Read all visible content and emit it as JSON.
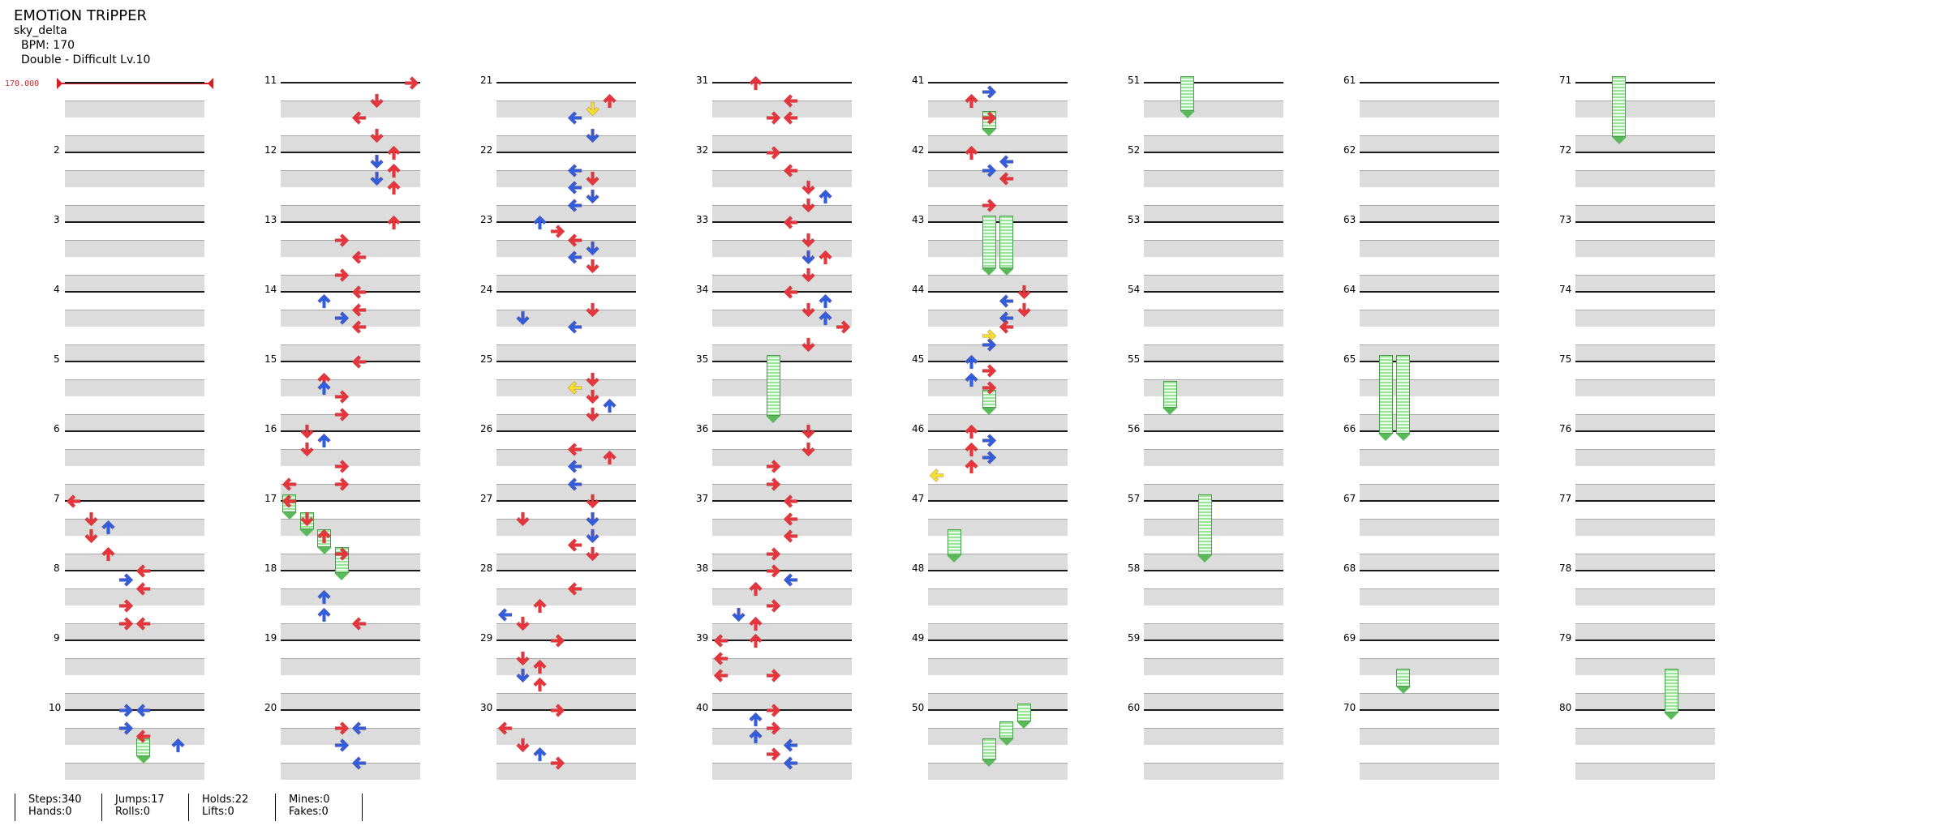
{
  "song": {
    "title": "EMOTiON TRiPPER",
    "author": "sky_delta",
    "bpm_line": "BPM: 170",
    "difficulty_line": "Double - Difficult Lv.10"
  },
  "bpm_marker": {
    "label": "170.000"
  },
  "measure_numbers": [
    "2",
    "3",
    "4",
    "5",
    "6",
    "7",
    "8",
    "9",
    "10",
    "11",
    "12",
    "13",
    "14",
    "15",
    "16",
    "17",
    "18",
    "19",
    "20",
    "21",
    "22",
    "23",
    "24",
    "25",
    "26",
    "27",
    "28",
    "29",
    "30",
    "31",
    "32",
    "33",
    "34",
    "35",
    "36",
    "37",
    "38",
    "39",
    "40",
    "41",
    "42",
    "43",
    "44",
    "45",
    "46",
    "47",
    "48",
    "49",
    "50",
    "51",
    "52",
    "53",
    "54",
    "55",
    "56",
    "57",
    "58",
    "59",
    "60",
    "61",
    "62",
    "63",
    "64",
    "65",
    "66",
    "67",
    "68",
    "69",
    "70",
    "71",
    "72",
    "73",
    "74",
    "75",
    "76",
    "77",
    "78",
    "79",
    "80"
  ],
  "stats": {
    "steps": "Steps:340",
    "hands": "Hands:0",
    "jumps": "Jumps:17",
    "rolls": "Rolls:0",
    "holds": "Holds:22",
    "lifts": "Lifts:0",
    "mines": "Mines:0",
    "fakes": "Fakes:0"
  },
  "colors": {
    "red": "#e8343a",
    "blue": "#2f5fe0",
    "yellow": "#f4e02c",
    "hold": "#9be39b"
  },
  "chart_data": {
    "type": "table",
    "columns": 8,
    "measures_per_column": 10,
    "lanes": [
      "L1",
      "D1",
      "U1",
      "R1",
      "L2",
      "D2",
      "U2",
      "R2"
    ],
    "notes": [
      {
        "m": 7,
        "b": 0,
        "l": 0,
        "c": "red"
      },
      {
        "m": 7,
        "b": 1,
        "l": 1,
        "c": "red"
      },
      {
        "m": 7,
        "b": 1.5,
        "l": 2,
        "c": "blue"
      },
      {
        "m": 7,
        "b": 2,
        "l": 1,
        "c": "red"
      },
      {
        "m": 7,
        "b": 3,
        "l": 2,
        "c": "red"
      },
      {
        "m": 8,
        "b": 0,
        "l": 4,
        "c": "red"
      },
      {
        "m": 8,
        "b": 0.5,
        "l": 3,
        "c": "blue"
      },
      {
        "m": 8,
        "b": 1,
        "l": 4,
        "c": "red"
      },
      {
        "m": 8,
        "b": 2,
        "l": 3,
        "c": "red"
      },
      {
        "m": 8,
        "b": 3,
        "l": 3,
        "c": "red"
      },
      {
        "m": 8,
        "b": 3,
        "l": 4,
        "c": "red"
      },
      {
        "m": 10,
        "b": 0,
        "l": 3,
        "c": "blue"
      },
      {
        "m": 10,
        "b": 0,
        "l": 4,
        "c": "blue"
      },
      {
        "m": 10,
        "b": 1,
        "l": 3,
        "c": "blue"
      },
      {
        "m": 10,
        "b": 1.5,
        "l": 4,
        "c": "red"
      },
      {
        "m": 10,
        "b": 2,
        "l": 6,
        "c": "blue"
      },
      {
        "m": 11,
        "b": 0,
        "l": 7,
        "c": "red"
      },
      {
        "m": 11,
        "b": 1,
        "l": 5,
        "c": "red"
      },
      {
        "m": 11,
        "b": 2,
        "l": 4,
        "c": "red"
      },
      {
        "m": 11,
        "b": 3,
        "l": 5,
        "c": "red"
      },
      {
        "m": 12,
        "b": 0,
        "l": 6,
        "c": "red"
      },
      {
        "m": 12,
        "b": 0.5,
        "l": 5,
        "c": "blue"
      },
      {
        "m": 12,
        "b": 1,
        "l": 6,
        "c": "red"
      },
      {
        "m": 12,
        "b": 1.5,
        "l": 5,
        "c": "blue"
      },
      {
        "m": 12,
        "b": 2,
        "l": 6,
        "c": "red"
      },
      {
        "m": 13,
        "b": 0,
        "l": 6,
        "c": "red"
      },
      {
        "m": 13,
        "b": 1,
        "l": 3,
        "c": "red"
      },
      {
        "m": 13,
        "b": 2,
        "l": 4,
        "c": "red"
      },
      {
        "m": 13,
        "b": 3,
        "l": 3,
        "c": "red"
      },
      {
        "m": 14,
        "b": 0,
        "l": 4,
        "c": "red"
      },
      {
        "m": 14,
        "b": 0.5,
        "l": 2,
        "c": "blue"
      },
      {
        "m": 14,
        "b": 1,
        "l": 4,
        "c": "red"
      },
      {
        "m": 14,
        "b": 1.5,
        "l": 3,
        "c": "blue"
      },
      {
        "m": 14,
        "b": 2,
        "l": 4,
        "c": "red"
      },
      {
        "m": 15,
        "b": 0,
        "l": 4,
        "c": "red"
      },
      {
        "m": 15,
        "b": 1,
        "l": 2,
        "c": "red"
      },
      {
        "m": 15,
        "b": 1.5,
        "l": 2,
        "c": "blue"
      },
      {
        "m": 15,
        "b": 2,
        "l": 3,
        "c": "red"
      },
      {
        "m": 15,
        "b": 3,
        "l": 3,
        "c": "red"
      },
      {
        "m": 16,
        "b": 0,
        "l": 1,
        "c": "red"
      },
      {
        "m": 16,
        "b": 0.5,
        "l": 2,
        "c": "blue"
      },
      {
        "m": 16,
        "b": 1,
        "l": 1,
        "c": "red"
      },
      {
        "m": 16,
        "b": 2,
        "l": 3,
        "c": "red"
      },
      {
        "m": 16,
        "b": 3,
        "l": 0,
        "c": "red"
      },
      {
        "m": 16,
        "b": 3,
        "l": 3,
        "c": "red"
      },
      {
        "m": 17,
        "b": 0,
        "l": 0,
        "c": "red"
      },
      {
        "m": 17,
        "b": 1,
        "l": 1,
        "c": "red"
      },
      {
        "m": 17,
        "b": 2,
        "l": 2,
        "c": "red"
      },
      {
        "m": 17,
        "b": 3,
        "l": 3,
        "c": "red"
      },
      {
        "m": 18,
        "b": 1.5,
        "l": 2,
        "c": "blue"
      },
      {
        "m": 18,
        "b": 2.5,
        "l": 2,
        "c": "blue"
      },
      {
        "m": 18,
        "b": 3,
        "l": 4,
        "c": "red"
      },
      {
        "m": 20,
        "b": 1,
        "l": 3,
        "c": "red"
      },
      {
        "m": 20,
        "b": 1,
        "l": 4,
        "c": "blue"
      },
      {
        "m": 20,
        "b": 2,
        "l": 3,
        "c": "blue"
      },
      {
        "m": 20,
        "b": 3,
        "l": 4,
        "c": "blue"
      },
      {
        "m": 21,
        "b": 1,
        "l": 6,
        "c": "red"
      },
      {
        "m": 21,
        "b": 1.5,
        "l": 5,
        "c": "yellow"
      },
      {
        "m": 21,
        "b": 2,
        "l": 4,
        "c": "blue"
      },
      {
        "m": 21,
        "b": 3,
        "l": 5,
        "c": "blue"
      },
      {
        "m": 22,
        "b": 1,
        "l": 4,
        "c": "blue"
      },
      {
        "m": 22,
        "b": 1.5,
        "l": 5,
        "c": "red"
      },
      {
        "m": 22,
        "b": 2,
        "l": 4,
        "c": "blue"
      },
      {
        "m": 22,
        "b": 2.5,
        "l": 5,
        "c": "blue"
      },
      {
        "m": 22,
        "b": 3,
        "l": 4,
        "c": "blue"
      },
      {
        "m": 23,
        "b": 0,
        "l": 2,
        "c": "blue"
      },
      {
        "m": 23,
        "b": 0.5,
        "l": 3,
        "c": "red"
      },
      {
        "m": 23,
        "b": 1,
        "l": 4,
        "c": "red"
      },
      {
        "m": 23,
        "b": 1.5,
        "l": 5,
        "c": "blue"
      },
      {
        "m": 23,
        "b": 2,
        "l": 4,
        "c": "blue"
      },
      {
        "m": 23,
        "b": 2.5,
        "l": 5,
        "c": "red"
      },
      {
        "m": 24,
        "b": 1,
        "l": 5,
        "c": "red"
      },
      {
        "m": 24,
        "b": 1.5,
        "l": 1,
        "c": "blue"
      },
      {
        "m": 24,
        "b": 2,
        "l": 4,
        "c": "blue"
      },
      {
        "m": 25,
        "b": 1,
        "l": 5,
        "c": "red"
      },
      {
        "m": 25,
        "b": 1.5,
        "l": 4,
        "c": "yellow"
      },
      {
        "m": 25,
        "b": 2,
        "l": 5,
        "c": "red"
      },
      {
        "m": 25,
        "b": 2.5,
        "l": 6,
        "c": "blue"
      },
      {
        "m": 25,
        "b": 3,
        "l": 5,
        "c": "red"
      },
      {
        "m": 26,
        "b": 1,
        "l": 4,
        "c": "red"
      },
      {
        "m": 26,
        "b": 1.5,
        "l": 6,
        "c": "red"
      },
      {
        "m": 26,
        "b": 2,
        "l": 4,
        "c": "blue"
      },
      {
        "m": 26,
        "b": 3,
        "l": 4,
        "c": "blue"
      },
      {
        "m": 27,
        "b": 0,
        "l": 5,
        "c": "red"
      },
      {
        "m": 27,
        "b": 1,
        "l": 1,
        "c": "red"
      },
      {
        "m": 27,
        "b": 1,
        "l": 5,
        "c": "blue"
      },
      {
        "m": 27,
        "b": 2,
        "l": 5,
        "c": "blue"
      },
      {
        "m": 27,
        "b": 2.5,
        "l": 4,
        "c": "red"
      },
      {
        "m": 27,
        "b": 3,
        "l": 5,
        "c": "red"
      },
      {
        "m": 28,
        "b": 1,
        "l": 4,
        "c": "red"
      },
      {
        "m": 28,
        "b": 2,
        "l": 2,
        "c": "red"
      },
      {
        "m": 28,
        "b": 2.5,
        "l": 0,
        "c": "blue"
      },
      {
        "m": 28,
        "b": 3,
        "l": 1,
        "c": "red"
      },
      {
        "m": 29,
        "b": 0,
        "l": 3,
        "c": "red"
      },
      {
        "m": 29,
        "b": 1,
        "l": 1,
        "c": "red"
      },
      {
        "m": 29,
        "b": 1.5,
        "l": 2,
        "c": "red"
      },
      {
        "m": 29,
        "b": 2,
        "l": 1,
        "c": "blue"
      },
      {
        "m": 29,
        "b": 2.5,
        "l": 2,
        "c": "red"
      },
      {
        "m": 30,
        "b": 0,
        "l": 3,
        "c": "red"
      },
      {
        "m": 30,
        "b": 1,
        "l": 0,
        "c": "red"
      },
      {
        "m": 30,
        "b": 2,
        "l": 1,
        "c": "red"
      },
      {
        "m": 30,
        "b": 2.5,
        "l": 2,
        "c": "blue"
      },
      {
        "m": 30,
        "b": 3,
        "l": 3,
        "c": "red"
      },
      {
        "m": 31,
        "b": 0,
        "l": 2,
        "c": "red"
      },
      {
        "m": 31,
        "b": 1,
        "l": 4,
        "c": "red"
      },
      {
        "m": 31,
        "b": 2,
        "l": 3,
        "c": "red"
      },
      {
        "m": 31,
        "b": 2,
        "l": 4,
        "c": "red"
      },
      {
        "m": 32,
        "b": 0,
        "l": 3,
        "c": "red"
      },
      {
        "m": 32,
        "b": 1,
        "l": 4,
        "c": "red"
      },
      {
        "m": 32,
        "b": 2,
        "l": 5,
        "c": "red"
      },
      {
        "m": 32,
        "b": 2.5,
        "l": 6,
        "c": "blue"
      },
      {
        "m": 32,
        "b": 3,
        "l": 5,
        "c": "red"
      },
      {
        "m": 33,
        "b": 0,
        "l": 4,
        "c": "red"
      },
      {
        "m": 33,
        "b": 1,
        "l": 5,
        "c": "red"
      },
      {
        "m": 33,
        "b": 2,
        "l": 5,
        "c": "blue"
      },
      {
        "m": 33,
        "b": 2,
        "l": 6,
        "c": "red"
      },
      {
        "m": 33,
        "b": 3,
        "l": 5,
        "c": "red"
      },
      {
        "m": 34,
        "b": 0,
        "l": 4,
        "c": "red"
      },
      {
        "m": 34,
        "b": 0.5,
        "l": 6,
        "c": "blue"
      },
      {
        "m": 34,
        "b": 1,
        "l": 5,
        "c": "red"
      },
      {
        "m": 34,
        "b": 1.5,
        "l": 6,
        "c": "blue"
      },
      {
        "m": 34,
        "b": 2,
        "l": 7,
        "c": "red"
      },
      {
        "m": 34,
        "b": 3,
        "l": 5,
        "c": "red"
      },
      {
        "m": 36,
        "b": 0,
        "l": 5,
        "c": "red"
      },
      {
        "m": 36,
        "b": 1,
        "l": 5,
        "c": "red"
      },
      {
        "m": 36,
        "b": 2,
        "l": 3,
        "c": "red"
      },
      {
        "m": 36,
        "b": 3,
        "l": 3,
        "c": "red"
      },
      {
        "m": 37,
        "b": 0,
        "l": 4,
        "c": "red"
      },
      {
        "m": 37,
        "b": 1,
        "l": 4,
        "c": "red"
      },
      {
        "m": 37,
        "b": 2,
        "l": 4,
        "c": "red"
      },
      {
        "m": 37,
        "b": 3,
        "l": 3,
        "c": "red"
      },
      {
        "m": 38,
        "b": 0,
        "l": 3,
        "c": "red"
      },
      {
        "m": 38,
        "b": 0.5,
        "l": 4,
        "c": "blue"
      },
      {
        "m": 38,
        "b": 1,
        "l": 2,
        "c": "red"
      },
      {
        "m": 38,
        "b": 2,
        "l": 3,
        "c": "red"
      },
      {
        "m": 38,
        "b": 2.5,
        "l": 1,
        "c": "blue"
      },
      {
        "m": 38,
        "b": 3,
        "l": 2,
        "c": "red"
      },
      {
        "m": 39,
        "b": 0,
        "l": 0,
        "c": "red"
      },
      {
        "m": 39,
        "b": 0,
        "l": 2,
        "c": "red"
      },
      {
        "m": 39,
        "b": 1,
        "l": 0,
        "c": "red"
      },
      {
        "m": 39,
        "b": 2,
        "l": 0,
        "c": "red"
      },
      {
        "m": 39,
        "b": 2,
        "l": 3,
        "c": "red"
      },
      {
        "m": 40,
        "b": 0,
        "l": 3,
        "c": "red"
      },
      {
        "m": 40,
        "b": 0.5,
        "l": 2,
        "c": "blue"
      },
      {
        "m": 40,
        "b": 1,
        "l": 3,
        "c": "red"
      },
      {
        "m": 40,
        "b": 1.5,
        "l": 2,
        "c": "blue"
      },
      {
        "m": 40,
        "b": 2,
        "l": 4,
        "c": "blue"
      },
      {
        "m": 40,
        "b": 2.5,
        "l": 3,
        "c": "red"
      },
      {
        "m": 40,
        "b": 3,
        "l": 4,
        "c": "blue"
      },
      {
        "m": 41,
        "b": 0.5,
        "l": 3,
        "c": "blue"
      },
      {
        "m": 41,
        "b": 1,
        "l": 2,
        "c": "red"
      },
      {
        "m": 41,
        "b": 2,
        "l": 3,
        "c": "red"
      },
      {
        "m": 42,
        "b": 0,
        "l": 2,
        "c": "red"
      },
      {
        "m": 42,
        "b": 0.5,
        "l": 4,
        "c": "blue"
      },
      {
        "m": 42,
        "b": 1,
        "l": 3,
        "c": "blue"
      },
      {
        "m": 42,
        "b": 1.5,
        "l": 4,
        "c": "red"
      },
      {
        "m": 42,
        "b": 3,
        "l": 3,
        "c": "red"
      },
      {
        "m": 44,
        "b": 0,
        "l": 5,
        "c": "red"
      },
      {
        "m": 44,
        "b": 0.5,
        "l": 4,
        "c": "blue"
      },
      {
        "m": 44,
        "b": 1,
        "l": 5,
        "c": "red"
      },
      {
        "m": 44,
        "b": 1.5,
        "l": 4,
        "c": "blue"
      },
      {
        "m": 44,
        "b": 2,
        "l": 4,
        "c": "red"
      },
      {
        "m": 44,
        "b": 2.5,
        "l": 3,
        "c": "yellow"
      },
      {
        "m": 44,
        "b": 3,
        "l": 3,
        "c": "blue"
      },
      {
        "m": 45,
        "b": 0,
        "l": 2,
        "c": "blue"
      },
      {
        "m": 45,
        "b": 0.5,
        "l": 3,
        "c": "red"
      },
      {
        "m": 45,
        "b": 1,
        "l": 2,
        "c": "blue"
      },
      {
        "m": 45,
        "b": 1.5,
        "l": 3,
        "c": "red"
      },
      {
        "m": 46,
        "b": 0,
        "l": 2,
        "c": "red"
      },
      {
        "m": 46,
        "b": 0.5,
        "l": 3,
        "c": "blue"
      },
      {
        "m": 46,
        "b": 1,
        "l": 2,
        "c": "red"
      },
      {
        "m": 46,
        "b": 1.5,
        "l": 3,
        "c": "blue"
      },
      {
        "m": 46,
        "b": 2,
        "l": 2,
        "c": "red"
      },
      {
        "m": 46,
        "b": 2.5,
        "l": 0,
        "c": "yellow"
      }
    ],
    "holds": [
      {
        "m": 10,
        "b": 2,
        "l": 4,
        "len": 1
      },
      {
        "m": 17,
        "b": 0,
        "l": 0,
        "len": 1
      },
      {
        "m": 17,
        "b": 1,
        "l": 1,
        "len": 1
      },
      {
        "m": 17,
        "b": 2,
        "l": 2,
        "len": 1
      },
      {
        "m": 17,
        "b": 3,
        "l": 3,
        "len": 1.5
      },
      {
        "m": 35,
        "b": 0,
        "l": 3,
        "len": 3.5
      },
      {
        "m": 41,
        "b": 2,
        "l": 3,
        "len": 1
      },
      {
        "m": 43,
        "b": 0,
        "l": 3,
        "len": 3
      },
      {
        "m": 43,
        "b": 0,
        "l": 4,
        "len": 3
      },
      {
        "m": 45,
        "b": 2,
        "l": 3,
        "len": 1
      },
      {
        "m": 47,
        "b": 2,
        "l": 1,
        "len": 1.5
      },
      {
        "m": 50,
        "b": 0,
        "l": 5,
        "len": 1
      },
      {
        "m": 50,
        "b": 1,
        "l": 4,
        "len": 1
      },
      {
        "m": 50,
        "b": 2,
        "l": 3,
        "len": 1.2
      },
      {
        "m": 51,
        "b": 0,
        "l": 2,
        "len": 2
      },
      {
        "m": 55,
        "b": 1.5,
        "l": 1,
        "len": 1.5
      },
      {
        "m": 57,
        "b": 0,
        "l": 3,
        "len": 3.5
      },
      {
        "m": 65,
        "b": 0,
        "l": 1,
        "len": 4.5
      },
      {
        "m": 65,
        "b": 0,
        "l": 2,
        "len": 4.5
      },
      {
        "m": 69,
        "b": 2,
        "l": 2,
        "len": 1
      },
      {
        "m": 71,
        "b": 0,
        "l": 2,
        "len": 3.5
      },
      {
        "m": 79,
        "b": 2,
        "l": 5,
        "len": 2.5
      }
    ]
  }
}
